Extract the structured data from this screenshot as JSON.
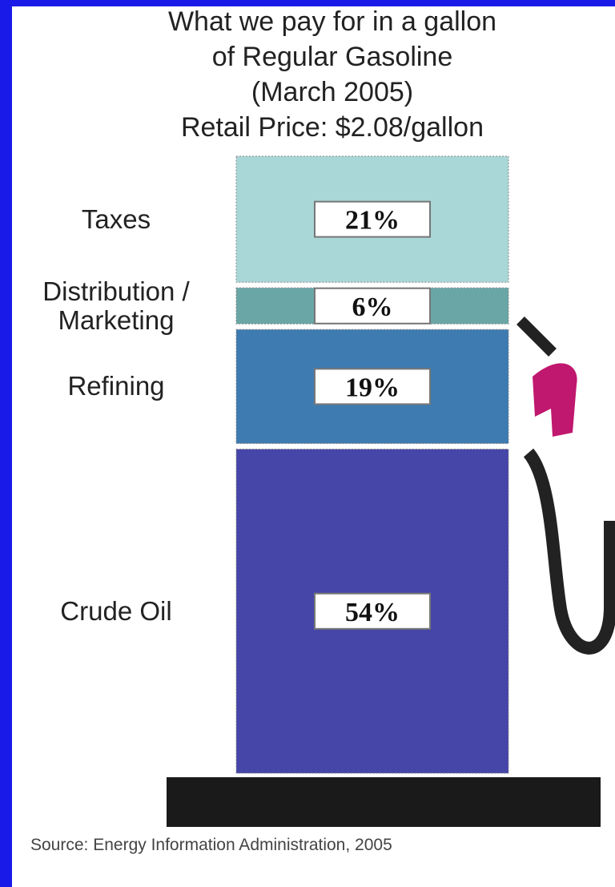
{
  "chart_data": {
    "type": "stacked-column",
    "title": [
      "What we pay for in a gallon",
      "of Regular Gasoline",
      "(March 2005)",
      "Retail Price: $2.08/gallon"
    ],
    "categories": [
      "Taxes",
      "Distribution / Marketing",
      "Refining",
      "Crude Oil"
    ],
    "values": [
      21,
      6,
      19,
      54
    ],
    "value_labels": [
      "21%",
      "6%",
      "19%",
      "54%"
    ],
    "colors": [
      "#a9d6d6",
      "#6aa6a6",
      "#3e7bb0",
      "#4646a8"
    ],
    "source": "Source: Energy Information Administration, 2005"
  }
}
